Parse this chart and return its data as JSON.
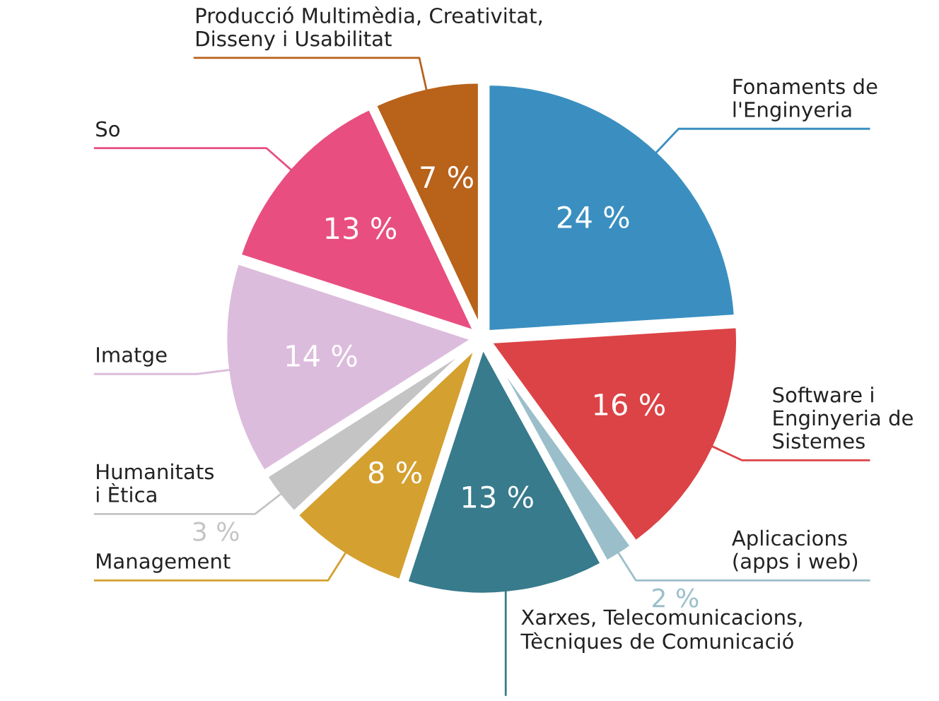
{
  "chart_data": {
    "type": "pie",
    "categories": [
      "Fonaments de\nl'Enginyeria",
      "Software i\nEnginyeria de\nSistemes",
      "Aplicacions\n(apps i web)",
      "Xarxes, Telecomunicacions,\nTècniques de Comunicació",
      "Management",
      "Humanitats\ni Ètica",
      "Imatge",
      "So",
      "Producció Multimèdia, Creativitat,\nDisseny i Usabilitat"
    ],
    "values": [
      24,
      16,
      2,
      13,
      8,
      3,
      14,
      13,
      7
    ],
    "value_labels": [
      "24 %",
      "16 %",
      "2 %",
      "13 %",
      "8 %",
      "3 %",
      "14 %",
      "13 %",
      "7 %"
    ],
    "colors": [
      "#3a8fc0",
      "#dc4346",
      "#9bbfca",
      "#377b8c",
      "#d4a030",
      "#c4c4c4",
      "#dcbcdc",
      "#e94e80",
      "#b8621a"
    ]
  }
}
